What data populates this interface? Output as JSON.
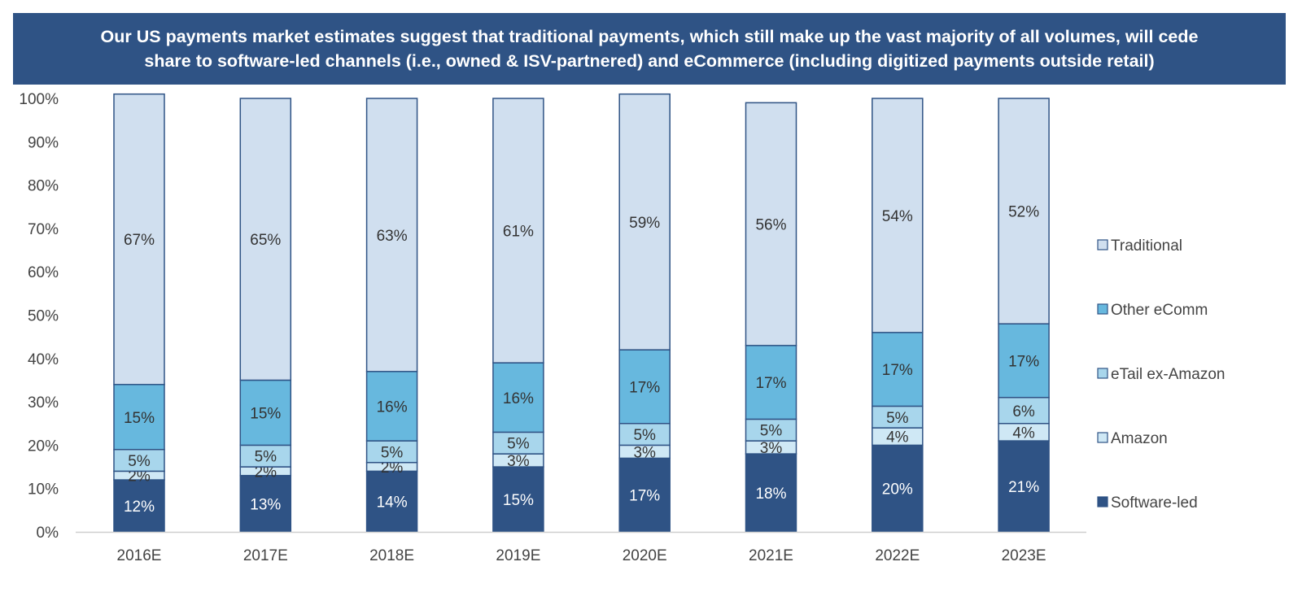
{
  "title_line1": "Our US payments market estimates suggest that traditional payments, which still make up the vast majority of all volumes, will cede",
  "title_line2": "share to software-led channels (i.e., owned & ISV-partnered) and eCommerce (including digitized payments outside retail)",
  "chart_data": {
    "type": "bar",
    "stacked": true,
    "categories": [
      "2016E",
      "2017E",
      "2018E",
      "2019E",
      "2020E",
      "2021E",
      "2022E",
      "2023E"
    ],
    "series": [
      {
        "name": "Software-led",
        "color": "#2f5385",
        "label_color": "#ffffff",
        "values": [
          12,
          13,
          14,
          15,
          17,
          18,
          20,
          21
        ],
        "labels": [
          "12%",
          "13%",
          "14%",
          "15%",
          "17%",
          "18%",
          "20%",
          "21%"
        ]
      },
      {
        "name": "Amazon",
        "color": "#cfe8f5",
        "label_color": "#333333",
        "values": [
          2,
          2,
          2,
          3,
          3,
          3,
          4,
          4
        ],
        "labels": [
          "2%",
          "2%",
          "2%",
          "3%",
          "3%",
          "3%",
          "4%",
          "4%"
        ]
      },
      {
        "name": "eTail ex-Amazon",
        "color": "#a8d6ec",
        "label_color": "#333333",
        "values": [
          5,
          5,
          5,
          5,
          5,
          5,
          5,
          6
        ],
        "labels": [
          "5%",
          "5%",
          "5%",
          "5%",
          "5%",
          "5%",
          "5%",
          "6%"
        ]
      },
      {
        "name": "Other eComm",
        "color": "#67b8de",
        "label_color": "#333333",
        "values": [
          15,
          15,
          16,
          16,
          17,
          17,
          17,
          17
        ],
        "labels": [
          "15%",
          "15%",
          "16%",
          "16%",
          "17%",
          "17%",
          "17%",
          "17%"
        ]
      },
      {
        "name": "Traditional",
        "color": "#d0dfef",
        "label_color": "#333333",
        "values": [
          67,
          65,
          63,
          61,
          59,
          56,
          54,
          52
        ],
        "labels": [
          "67%",
          "65%",
          "63%",
          "61%",
          "59%",
          "56%",
          "54%",
          "52%"
        ]
      }
    ],
    "y_ticks": [
      "0%",
      "10%",
      "20%",
      "30%",
      "40%",
      "50%",
      "60%",
      "70%",
      "80%",
      "90%",
      "100%"
    ],
    "ylim": [
      0,
      100
    ],
    "grid": false,
    "legend_order": [
      "Traditional",
      "Other eComm",
      "eTail ex-Amazon",
      "Amazon",
      "Software-led"
    ],
    "legend_position": "right",
    "bar_border_color": "#2f5385"
  }
}
